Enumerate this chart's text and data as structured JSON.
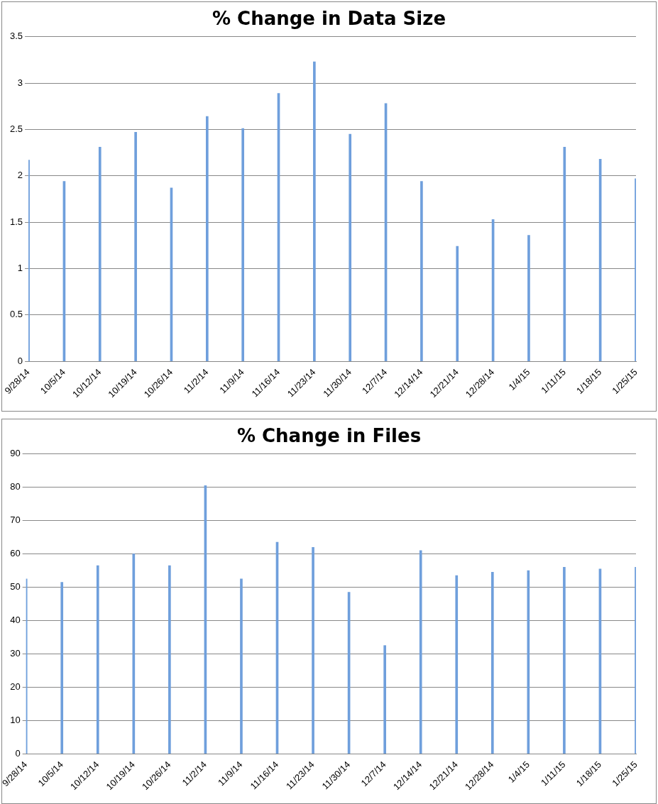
{
  "chart_data": [
    {
      "type": "bar",
      "title": "% Change in Data Size",
      "categories": [
        "9/28/14",
        "10/5/14",
        "10/12/14",
        "10/19/14",
        "10/26/14",
        "11/2/14",
        "11/9/14",
        "11/16/14",
        "11/23/14",
        "11/30/14",
        "12/7/14",
        "12/14/14",
        "12/21/14",
        "12/28/14",
        "1/4/15",
        "1/11/15",
        "1/18/15",
        "1/25/15"
      ],
      "values": [
        2.17,
        1.94,
        2.31,
        2.47,
        1.87,
        2.64,
        2.51,
        2.89,
        3.23,
        2.45,
        2.78,
        1.94,
        1.24,
        1.53,
        1.36,
        2.31,
        2.18,
        1.97
      ],
      "color": "#6f9fdc",
      "ylim": [
        0,
        3.5
      ],
      "yticks": [
        0,
        0.5,
        1,
        1.5,
        2,
        2.5,
        3,
        3.5
      ],
      "grid": "y"
    },
    {
      "type": "bar",
      "title": "% Change in Files",
      "categories": [
        "9/28/14",
        "10/5/14",
        "10/12/14",
        "10/19/14",
        "10/26/14",
        "11/2/14",
        "11/9/14",
        "11/16/14",
        "11/23/14",
        "11/30/14",
        "12/7/14",
        "12/14/14",
        "12/21/14",
        "12/28/14",
        "1/4/15",
        "1/11/15",
        "1/18/15",
        "1/25/15"
      ],
      "values": [
        52.5,
        51.5,
        56.5,
        60,
        56.5,
        80.5,
        52.5,
        63.5,
        62,
        48.5,
        32.5,
        61,
        53.5,
        54.5,
        55,
        56,
        55.5,
        56
      ],
      "color": "#6f9fdc",
      "ylim": [
        0,
        90
      ],
      "yticks": [
        0,
        10,
        20,
        30,
        40,
        50,
        60,
        70,
        80,
        90
      ],
      "grid": "y"
    }
  ]
}
